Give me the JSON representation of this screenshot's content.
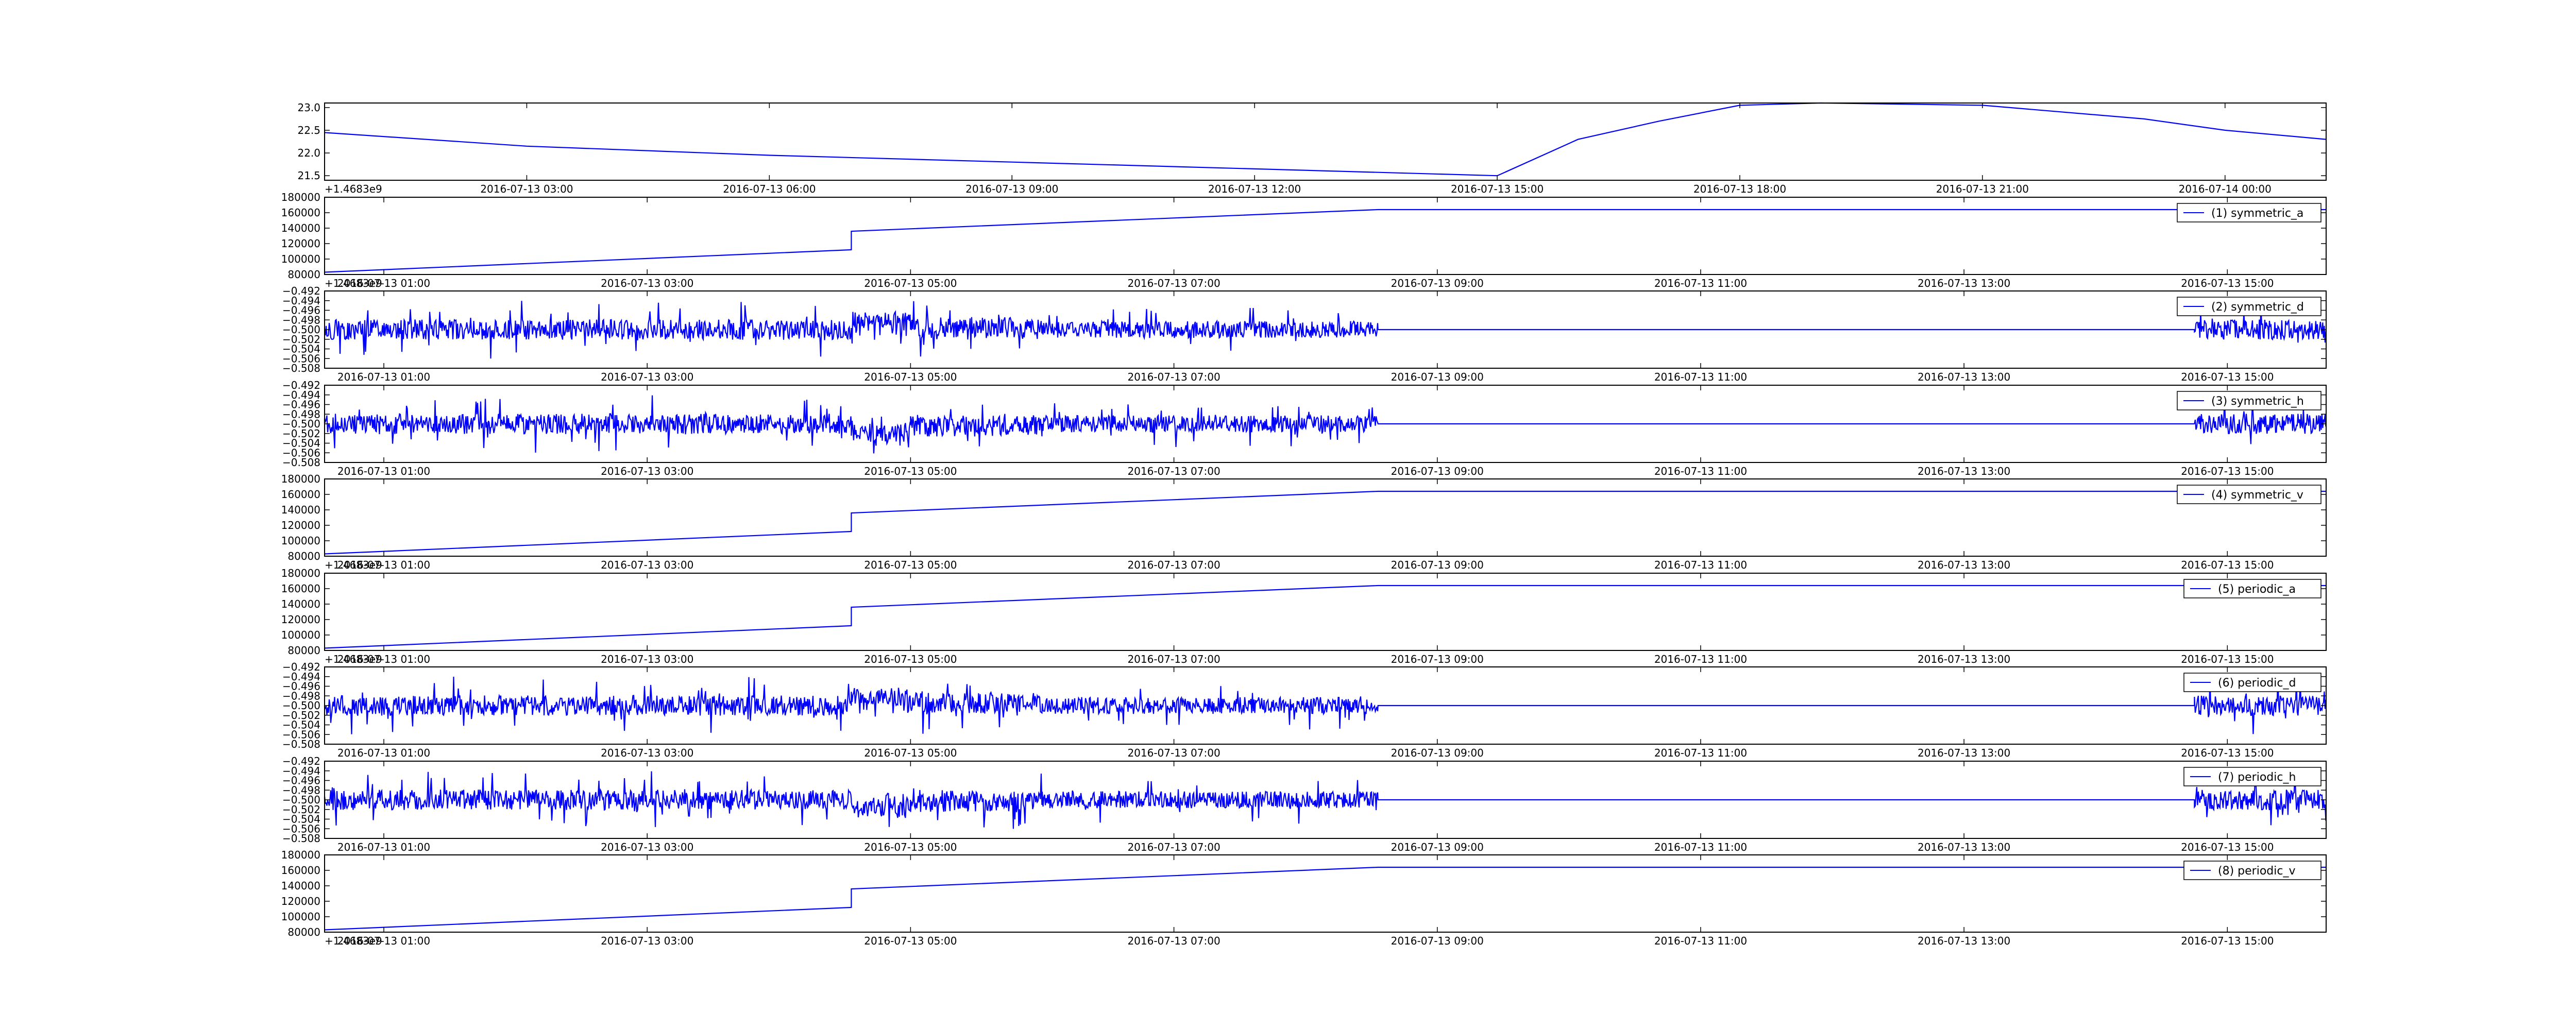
{
  "figure": {
    "background": "#ffffff",
    "line_color": "#0000ff"
  },
  "chart_data": [
    {
      "type": "line",
      "title": "",
      "offset_label": "+1.4683e9",
      "ylim": [
        21.4,
        23.1
      ],
      "yticks": [
        "21.5",
        "22.0",
        "22.5",
        "23.0"
      ],
      "ytick_values": [
        21.5,
        22.0,
        22.5,
        23.0
      ],
      "xticks": [
        "2016-07-13 03:00",
        "2016-07-13 06:00",
        "2016-07-13 09:00",
        "2016-07-13 12:00",
        "2016-07-13 15:00",
        "2016-07-13 18:00",
        "2016-07-13 21:00",
        "2016-07-14 00:00"
      ],
      "xlim": [
        "2016-07-13 00:30",
        "2016-07-14 01:15"
      ],
      "legend": "",
      "legend_position": "none",
      "grid": false,
      "series": [
        {
          "x": [
            "2016-07-13 00:30",
            "2016-07-13 03:00",
            "2016-07-13 06:00",
            "2016-07-13 09:00",
            "2016-07-13 12:00",
            "2016-07-13 15:00",
            "2016-07-13 16:00",
            "2016-07-13 17:00",
            "2016-07-13 18:00",
            "2016-07-13 19:00",
            "2016-07-13 21:00",
            "2016-07-13 23:00",
            "2016-07-14 00:00",
            "2016-07-14 01:15"
          ],
          "y": [
            22.45,
            22.15,
            21.95,
            21.8,
            21.65,
            21.5,
            22.3,
            22.7,
            23.05,
            23.1,
            23.05,
            22.75,
            22.5,
            22.3
          ]
        }
      ]
    },
    {
      "type": "line",
      "title": "",
      "offset_label": "+1.4683e9",
      "ylim": [
        80000,
        180000
      ],
      "yticks": [
        "80000",
        "100000",
        "120000",
        "140000",
        "160000",
        "180000"
      ],
      "ytick_values": [
        80000,
        100000,
        120000,
        140000,
        160000,
        180000
      ],
      "xticks": [
        "2016-07-13 01:00",
        "2016-07-13 03:00",
        "2016-07-13 05:00",
        "2016-07-13 07:00",
        "2016-07-13 09:00",
        "2016-07-13 11:00",
        "2016-07-13 13:00",
        "2016-07-13 15:00"
      ],
      "xlim": [
        "2016-07-13 00:33",
        "2016-07-13 15:45"
      ],
      "legend": "(1) symmetric_a",
      "legend_position": "top-right",
      "grid": false,
      "series": [
        {
          "x": [
            "2016-07-13 00:33",
            "2016-07-13 04:33",
            "2016-07-13 04:33",
            "2016-07-13 08:33",
            "2016-07-13 15:45"
          ],
          "y": [
            83000,
            112000,
            136000,
            164000,
            164000
          ]
        }
      ]
    },
    {
      "type": "line",
      "title": "",
      "offset_label": "",
      "ylim": [
        -0.508,
        -0.492
      ],
      "yticks": [
        "−0.508",
        "−0.506",
        "−0.504",
        "−0.502",
        "−0.500",
        "−0.498",
        "−0.496",
        "−0.494",
        "−0.492"
      ],
      "ytick_values": [
        -0.508,
        -0.506,
        -0.504,
        -0.502,
        -0.5,
        -0.498,
        -0.496,
        -0.494,
        -0.492
      ],
      "xticks": [
        "2016-07-13 01:00",
        "2016-07-13 03:00",
        "2016-07-13 05:00",
        "2016-07-13 07:00",
        "2016-07-13 09:00",
        "2016-07-13 11:00",
        "2016-07-13 13:00",
        "2016-07-13 15:00"
      ],
      "xlim": [
        "2016-07-13 00:33",
        "2016-07-13 15:45"
      ],
      "legend": "(2) symmetric_d",
      "legend_position": "top-right",
      "grid": false,
      "series": [
        {
          "baseline": -0.5,
          "noise_segments": [
            {
              "start": "2016-07-13 00:33",
              "end": "2016-07-13 04:33",
              "amplitude": 0.006,
              "offset": 0.0
            },
            {
              "start": "2016-07-13 04:33",
              "end": "2016-07-13 05:00",
              "amplitude": 0.005,
              "offset": 0.002
            },
            {
              "start": "2016-07-13 05:00",
              "end": "2016-07-13 06:00",
              "amplitude": 0.006,
              "offset": 0.0005
            },
            {
              "start": "2016-07-13 06:00",
              "end": "2016-07-13 08:33",
              "amplitude": 0.005,
              "offset": 0.0
            },
            {
              "start": "2016-07-13 14:45",
              "end": "2016-07-13 15:45",
              "amplitude": 0.006,
              "offset": 0.0
            }
          ]
        }
      ]
    },
    {
      "type": "line",
      "title": "",
      "offset_label": "",
      "ylim": [
        -0.508,
        -0.492
      ],
      "yticks": [
        "−0.508",
        "−0.506",
        "−0.504",
        "−0.502",
        "−0.500",
        "−0.498",
        "−0.496",
        "−0.494",
        "−0.492"
      ],
      "ytick_values": [
        -0.508,
        -0.506,
        -0.504,
        -0.502,
        -0.5,
        -0.498,
        -0.496,
        -0.494,
        -0.492
      ],
      "xticks": [
        "2016-07-13 01:00",
        "2016-07-13 03:00",
        "2016-07-13 05:00",
        "2016-07-13 07:00",
        "2016-07-13 09:00",
        "2016-07-13 11:00",
        "2016-07-13 13:00",
        "2016-07-13 15:00"
      ],
      "xlim": [
        "2016-07-13 00:33",
        "2016-07-13 15:45"
      ],
      "legend": "(3) symmetric_h",
      "legend_position": "top-right",
      "grid": false,
      "series": [
        {
          "baseline": -0.5,
          "noise_segments": [
            {
              "start": "2016-07-13 00:33",
              "end": "2016-07-13 04:33",
              "amplitude": 0.006,
              "offset": 0.0
            },
            {
              "start": "2016-07-13 04:33",
              "end": "2016-07-13 05:00",
              "amplitude": 0.005,
              "offset": -0.002
            },
            {
              "start": "2016-07-13 05:00",
              "end": "2016-07-13 06:00",
              "amplitude": 0.006,
              "offset": -0.0005
            },
            {
              "start": "2016-07-13 06:00",
              "end": "2016-07-13 08:33",
              "amplitude": 0.005,
              "offset": 0.0
            },
            {
              "start": "2016-07-13 14:45",
              "end": "2016-07-13 15:45",
              "amplitude": 0.006,
              "offset": 0.0
            }
          ]
        }
      ]
    },
    {
      "type": "line",
      "title": "",
      "offset_label": "+1.4683e9",
      "ylim": [
        80000,
        180000
      ],
      "yticks": [
        "80000",
        "100000",
        "120000",
        "140000",
        "160000",
        "180000"
      ],
      "ytick_values": [
        80000,
        100000,
        120000,
        140000,
        160000,
        180000
      ],
      "xticks": [
        "2016-07-13 01:00",
        "2016-07-13 03:00",
        "2016-07-13 05:00",
        "2016-07-13 07:00",
        "2016-07-13 09:00",
        "2016-07-13 11:00",
        "2016-07-13 13:00",
        "2016-07-13 15:00"
      ],
      "xlim": [
        "2016-07-13 00:33",
        "2016-07-13 15:45"
      ],
      "legend": "(4) symmetric_v",
      "legend_position": "top-right",
      "grid": false,
      "series": [
        {
          "x": [
            "2016-07-13 00:33",
            "2016-07-13 04:33",
            "2016-07-13 04:33",
            "2016-07-13 08:33",
            "2016-07-13 15:45"
          ],
          "y": [
            83000,
            112000,
            136000,
            164000,
            164000
          ]
        }
      ]
    },
    {
      "type": "line",
      "title": "",
      "offset_label": "+1.4683e9",
      "ylim": [
        80000,
        180000
      ],
      "yticks": [
        "80000",
        "100000",
        "120000",
        "140000",
        "160000",
        "180000"
      ],
      "ytick_values": [
        80000,
        100000,
        120000,
        140000,
        160000,
        180000
      ],
      "xticks": [
        "2016-07-13 01:00",
        "2016-07-13 03:00",
        "2016-07-13 05:00",
        "2016-07-13 07:00",
        "2016-07-13 09:00",
        "2016-07-13 11:00",
        "2016-07-13 13:00",
        "2016-07-13 15:00"
      ],
      "xlim": [
        "2016-07-13 00:33",
        "2016-07-13 15:45"
      ],
      "legend": "(5) periodic_a",
      "legend_position": "top-right",
      "grid": false,
      "series": [
        {
          "x": [
            "2016-07-13 00:33",
            "2016-07-13 04:33",
            "2016-07-13 04:33",
            "2016-07-13 08:33",
            "2016-07-13 15:45"
          ],
          "y": [
            83000,
            112000,
            136000,
            164000,
            164000
          ]
        }
      ]
    },
    {
      "type": "line",
      "title": "",
      "offset_label": "",
      "ylim": [
        -0.508,
        -0.492
      ],
      "yticks": [
        "−0.508",
        "−0.506",
        "−0.504",
        "−0.502",
        "−0.500",
        "−0.498",
        "−0.496",
        "−0.494",
        "−0.492"
      ],
      "ytick_values": [
        -0.508,
        -0.506,
        -0.504,
        -0.502,
        -0.5,
        -0.498,
        -0.496,
        -0.494,
        -0.492
      ],
      "xticks": [
        "2016-07-13 01:00",
        "2016-07-13 03:00",
        "2016-07-13 05:00",
        "2016-07-13 07:00",
        "2016-07-13 09:00",
        "2016-07-13 11:00",
        "2016-07-13 13:00",
        "2016-07-13 15:00"
      ],
      "xlim": [
        "2016-07-13 00:33",
        "2016-07-13 15:45"
      ],
      "legend": "(6) periodic_d",
      "legend_position": "top-right",
      "grid": false,
      "series": [
        {
          "baseline": -0.5,
          "noise_segments": [
            {
              "start": "2016-07-13 00:33",
              "end": "2016-07-13 04:33",
              "amplitude": 0.006,
              "offset": 0.0
            },
            {
              "start": "2016-07-13 04:33",
              "end": "2016-07-13 05:00",
              "amplitude": 0.005,
              "offset": 0.002
            },
            {
              "start": "2016-07-13 05:00",
              "end": "2016-07-13 06:00",
              "amplitude": 0.006,
              "offset": 0.0005
            },
            {
              "start": "2016-07-13 06:00",
              "end": "2016-07-13 08:33",
              "amplitude": 0.005,
              "offset": 0.0
            },
            {
              "start": "2016-07-13 14:45",
              "end": "2016-07-13 15:45",
              "amplitude": 0.006,
              "offset": 0.0
            }
          ]
        }
      ]
    },
    {
      "type": "line",
      "title": "",
      "offset_label": "",
      "ylim": [
        -0.508,
        -0.492
      ],
      "yticks": [
        "−0.508",
        "−0.506",
        "−0.504",
        "−0.502",
        "−0.500",
        "−0.498",
        "−0.496",
        "−0.494",
        "−0.492"
      ],
      "ytick_values": [
        -0.508,
        -0.506,
        -0.504,
        -0.502,
        -0.5,
        -0.498,
        -0.496,
        -0.494,
        -0.492
      ],
      "xticks": [
        "2016-07-13 01:00",
        "2016-07-13 03:00",
        "2016-07-13 05:00",
        "2016-07-13 07:00",
        "2016-07-13 09:00",
        "2016-07-13 11:00",
        "2016-07-13 13:00",
        "2016-07-13 15:00"
      ],
      "xlim": [
        "2016-07-13 00:33",
        "2016-07-13 15:45"
      ],
      "legend": "(7) periodic_h",
      "legend_position": "top-right",
      "grid": false,
      "series": [
        {
          "baseline": -0.5,
          "noise_segments": [
            {
              "start": "2016-07-13 00:33",
              "end": "2016-07-13 04:33",
              "amplitude": 0.006,
              "offset": 0.0
            },
            {
              "start": "2016-07-13 04:33",
              "end": "2016-07-13 05:00",
              "amplitude": 0.005,
              "offset": -0.002
            },
            {
              "start": "2016-07-13 05:00",
              "end": "2016-07-13 06:00",
              "amplitude": 0.006,
              "offset": -0.0005
            },
            {
              "start": "2016-07-13 06:00",
              "end": "2016-07-13 08:33",
              "amplitude": 0.005,
              "offset": 0.0
            },
            {
              "start": "2016-07-13 14:45",
              "end": "2016-07-13 15:45",
              "amplitude": 0.006,
              "offset": 0.0
            }
          ]
        }
      ]
    },
    {
      "type": "line",
      "title": "",
      "offset_label": "+1.4683e9",
      "ylim": [
        80000,
        180000
      ],
      "yticks": [
        "80000",
        "100000",
        "120000",
        "140000",
        "160000",
        "180000"
      ],
      "ytick_values": [
        80000,
        100000,
        120000,
        140000,
        160000,
        180000
      ],
      "xticks": [
        "2016-07-13 01:00",
        "2016-07-13 03:00",
        "2016-07-13 05:00",
        "2016-07-13 07:00",
        "2016-07-13 09:00",
        "2016-07-13 11:00",
        "2016-07-13 13:00",
        "2016-07-13 15:00"
      ],
      "xlim": [
        "2016-07-13 00:33",
        "2016-07-13 15:45"
      ],
      "legend": "(8) periodic_v",
      "legend_position": "top-right",
      "grid": false,
      "series": [
        {
          "x": [
            "2016-07-13 00:33",
            "2016-07-13 04:33",
            "2016-07-13 04:33",
            "2016-07-13 08:33",
            "2016-07-13 15:45"
          ],
          "y": [
            83000,
            112000,
            136000,
            164000,
            164000
          ]
        }
      ]
    }
  ]
}
